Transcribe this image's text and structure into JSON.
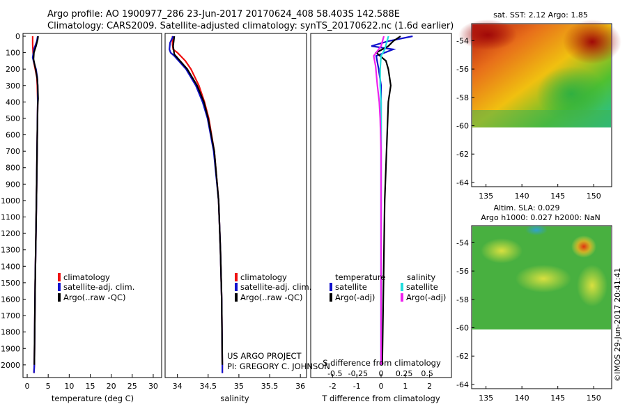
{
  "header": {
    "line1": "Argo profile: AO 1900977_286 23-Jun-2017 20170624_408 58.403S 142.588E",
    "line2": "Climatology: CARS2009. Satellite-adjusted climatology: synTS_20170622.nc (1.6d earlier)"
  },
  "colors": {
    "climatology": "#ee1111",
    "satellite": "#1111cc",
    "argo": "#000000",
    "sal_satellite": "#22dddd",
    "sal_argo": "#ee22ee"
  },
  "chart_data": [
    {
      "type": "line",
      "id": "temperature",
      "xlabel": "temperature (deg C)",
      "xlim": [
        -1,
        32
      ],
      "ylim": [
        2060,
        0
      ],
      "xticks": [
        0,
        5,
        10,
        15,
        20,
        25,
        30
      ],
      "yticks": [
        0,
        100,
        200,
        300,
        400,
        500,
        600,
        700,
        800,
        900,
        1000,
        1100,
        1200,
        1300,
        1400,
        1500,
        1600,
        1700,
        1800,
        1900,
        2000
      ],
      "legend": [
        "climatology",
        "satellite-adj. clim.",
        "Argo(..raw -QC)"
      ],
      "series": [
        {
          "name": "climatology",
          "color": "#ee1111",
          "depth": [
            0,
            50,
            100,
            150,
            200,
            250,
            300,
            400,
            600,
            1000,
            1500,
            2000,
            2050
          ],
          "values": [
            1.3,
            1.3,
            1.4,
            1.5,
            1.9,
            2.3,
            2.4,
            2.5,
            2.4,
            2.2,
            1.9,
            1.7,
            1.6
          ]
        },
        {
          "name": "satellite-adj. clim.",
          "color": "#1111cc",
          "depth": [
            0,
            30,
            80,
            130,
            150,
            200,
            250,
            300,
            400,
            600,
            1000,
            1500,
            2000,
            2050
          ],
          "values": [
            2.5,
            2.3,
            1.6,
            1.3,
            1.5,
            2.1,
            2.4,
            2.5,
            2.5,
            2.4,
            2.2,
            1.9,
            1.7,
            1.6
          ]
        },
        {
          "name": "Argo(..raw -QC)",
          "color": "#000000",
          "depth": [
            0,
            20,
            60,
            100,
            140,
            200,
            260,
            300,
            380,
            420,
            600,
            1000,
            1500,
            2000
          ],
          "values": [
            2.6,
            2.5,
            2.1,
            1.6,
            1.5,
            2.0,
            2.4,
            2.5,
            2.6,
            2.5,
            2.4,
            2.2,
            1.9,
            1.7
          ]
        }
      ]
    },
    {
      "type": "line",
      "id": "salinity",
      "xlabel": "salinity",
      "xlim": [
        33.8,
        36.1
      ],
      "ylim": [
        2060,
        0
      ],
      "xticks": [
        34,
        34.5,
        35,
        35.5,
        36
      ],
      "xticklabels": [
        "34",
        "34.5",
        "35",
        "35.5",
        "36"
      ],
      "legend": [
        "climatology",
        "satellite-adj. clim.",
        "Argo(..raw -QC)"
      ],
      "series": [
        {
          "name": "climatology",
          "color": "#ee1111",
          "depth": [
            0,
            50,
            80,
            100,
            150,
            200,
            300,
            400,
            500,
            700,
            1000,
            1300,
            1600,
            2000,
            2050
          ],
          "values": [
            33.92,
            33.92,
            33.93,
            34.0,
            34.13,
            34.22,
            34.35,
            34.44,
            34.51,
            34.6,
            34.67,
            34.7,
            34.72,
            34.73,
            34.73
          ]
        },
        {
          "name": "satellite-adj. clim.",
          "color": "#1111cc",
          "depth": [
            0,
            40,
            80,
            100,
            120,
            200,
            300,
            400,
            500,
            700,
            1000,
            1300,
            1600,
            2000,
            2050
          ],
          "values": [
            33.93,
            33.88,
            33.87,
            33.89,
            33.95,
            34.14,
            34.3,
            34.41,
            34.49,
            34.59,
            34.67,
            34.7,
            34.72,
            34.73,
            34.73
          ]
        },
        {
          "name": "Argo(..raw -QC)",
          "color": "#000000",
          "depth": [
            0,
            60,
            110,
            200,
            300,
            400,
            500,
            700,
            1000,
            1300,
            1600,
            2000
          ],
          "values": [
            33.95,
            33.93,
            33.95,
            34.16,
            34.32,
            34.43,
            34.5,
            34.6,
            34.67,
            34.7,
            34.72,
            34.73
          ]
        }
      ]
    },
    {
      "type": "line",
      "id": "difference",
      "xlabel": "T difference from climatology",
      "top_xlabel": "S difference from climatology",
      "xlim": [
        -2.9,
        2.9
      ],
      "ylim": [
        2060,
        0
      ],
      "xticks": [
        -2,
        -1,
        0,
        1,
        2
      ],
      "top_xticks": [
        -0.5,
        -0.25,
        0,
        0.25,
        0.5
      ],
      "top_xticklabels": [
        "-0.5",
        "-0.25",
        "0",
        "0.25",
        "0.5"
      ],
      "legend_headers": [
        "temperature",
        "salinity"
      ],
      "legend": [
        "satellite",
        "Argo(-adj)",
        "satellite",
        "Argo(-adj)"
      ],
      "series": [
        {
          "name": "temperature satellite",
          "color": "#1111cc",
          "depth": [
            0,
            30,
            60,
            80,
            120,
            200,
            300,
            600,
            1000,
            1500,
            2000
          ],
          "values": [
            1.3,
            0.3,
            -0.4,
            0.5,
            -0.2,
            -0.1,
            0.0,
            0.0,
            0.0,
            0.0,
            0.0
          ]
        },
        {
          "name": "temperature Argo(-adj)",
          "color": "#000000",
          "depth": [
            0,
            30,
            60,
            100,
            150,
            200,
            300,
            400,
            600,
            1000,
            1500,
            2000
          ],
          "values": [
            0.8,
            0.5,
            0.3,
            -0.2,
            0.2,
            0.3,
            0.4,
            0.3,
            0.25,
            0.15,
            0.1,
            0.05
          ]
        },
        {
          "name": "salinity satellite",
          "color": "#22dddd",
          "depth": [
            0,
            40,
            80,
            120,
            200,
            300,
            400,
            600,
            1000,
            1500,
            2000
          ],
          "values": [
            0.08,
            0.06,
            0.04,
            0.0,
            -0.01,
            -0.01,
            0.0,
            0.0,
            0.0,
            0.0,
            0.0
          ]
        },
        {
          "name": "salinity Argo(-adj)",
          "color": "#ee22ee",
          "depth": [
            0,
            60,
            120,
            180,
            300,
            400,
            500,
            700,
            1000,
            1500,
            2000
          ],
          "values": [
            0.03,
            0.0,
            -0.08,
            -0.06,
            -0.04,
            -0.02,
            -0.01,
            0.0,
            0.0,
            0.0,
            0.0
          ]
        }
      ]
    },
    {
      "type": "heatmap",
      "id": "sst-map",
      "title": "sat. SST: 2.12 Argo: 1.85",
      "xlim": [
        133,
        152.5
      ],
      "ylim": [
        -64.3,
        -52.8
      ],
      "data_lat_range": [
        -60,
        -52.8
      ],
      "xticks": [
        135,
        140,
        145,
        150
      ],
      "yticks": [
        -54,
        -56,
        -58,
        -60,
        -62,
        -64
      ]
    },
    {
      "type": "heatmap",
      "id": "sla-map",
      "title_lines": [
        "Altim. SLA: 0.029",
        "Argo h1000: 0.027 h2000: NaN"
      ],
      "xlim": [
        133,
        152.5
      ],
      "ylim": [
        -64.3,
        -52.8
      ],
      "data_lat_range": [
        -60,
        -52.8
      ],
      "xticks": [
        135,
        140,
        145,
        150
      ],
      "yticks": [
        -54,
        -56,
        -58,
        -60,
        -62,
        -64
      ]
    }
  ],
  "annotations": {
    "project": "US ARGO PROJECT",
    "pi": "PI: GREGORY C. JOHNSON",
    "stamp": "©IMOS 29-Jun-2017 20:41:41"
  }
}
